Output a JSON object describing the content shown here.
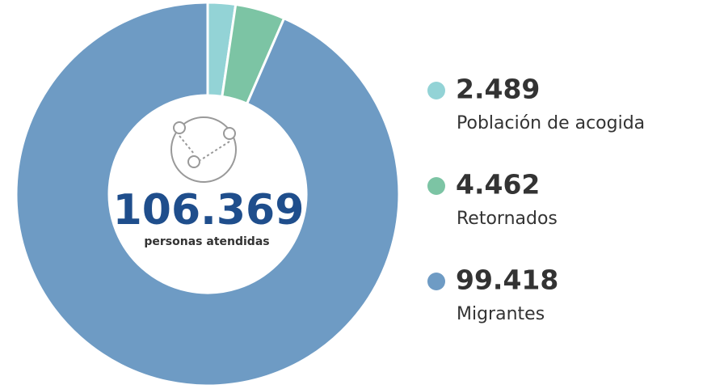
{
  "chart_data": {
    "type": "pie",
    "categories": [
      "Población de acogida",
      "Retornados",
      "Migrantes"
    ],
    "values": [
      2489,
      4462,
      99418
    ],
    "value_labels": [
      "2.489",
      "4.462",
      "99.418"
    ],
    "colors": [
      "#93d3d6",
      "#7cc4a4",
      "#6e9bc4"
    ],
    "center_value": "106.369",
    "center_label": "personas atendidas"
  }
}
